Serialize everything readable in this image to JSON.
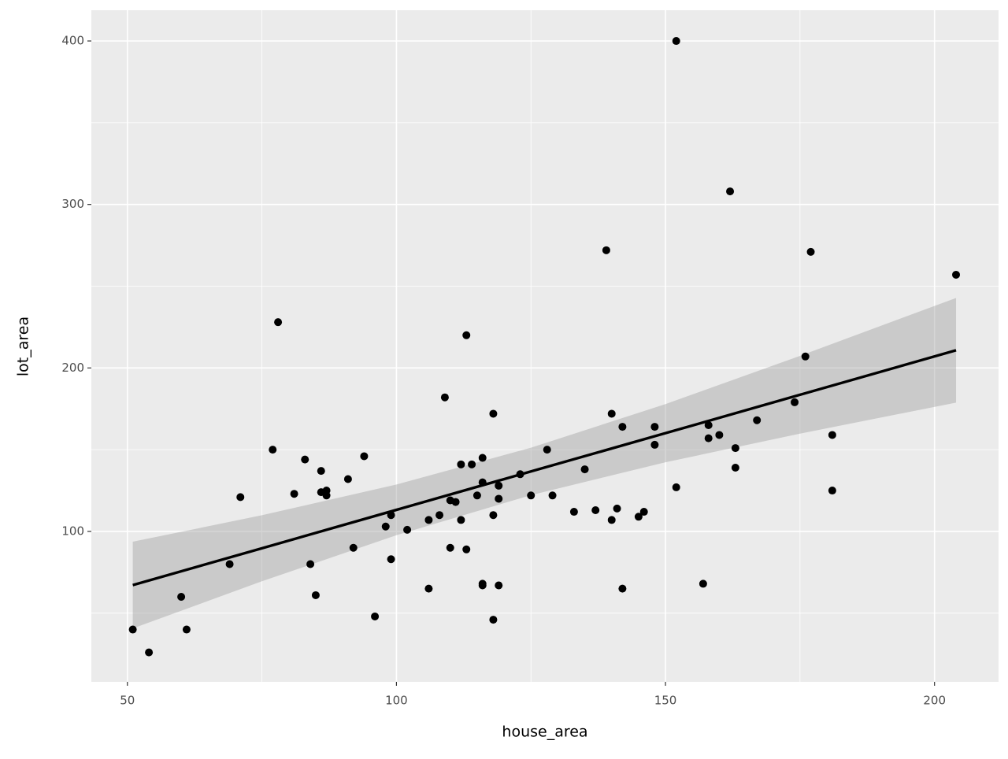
{
  "chart_data": {
    "type": "scatter",
    "x_label": "house_area",
    "y_label": "lot_area",
    "x": [
      51,
      54,
      60,
      61,
      69,
      71,
      77,
      78,
      81,
      83,
      84,
      85,
      86,
      86,
      87,
      87,
      91,
      92,
      94,
      96,
      98,
      99,
      99,
      102,
      106,
      106,
      108,
      109,
      110,
      110,
      111,
      112,
      112,
      113,
      113,
      114,
      115,
      116,
      116,
      116,
      116,
      118,
      118,
      118,
      119,
      119,
      119,
      123,
      125,
      128,
      129,
      133,
      135,
      137,
      139,
      140,
      140,
      141,
      142,
      142,
      145,
      146,
      148,
      148,
      152,
      152,
      157,
      158,
      158,
      160,
      162,
      163,
      163,
      167,
      174,
      176,
      177,
      181,
      181,
      204
    ],
    "y": [
      40,
      26,
      60,
      40,
      80,
      121,
      150,
      228,
      123,
      144,
      80,
      61,
      137,
      124,
      125,
      122,
      132,
      90,
      146,
      48,
      103,
      110,
      83,
      101,
      65,
      107,
      110,
      182,
      119,
      90,
      118,
      141,
      107,
      220,
      89,
      141,
      122,
      145,
      130,
      68,
      67,
      172,
      110,
      46,
      128,
      120,
      67,
      135,
      122,
      150,
      122,
      112,
      138,
      113,
      272,
      172,
      107,
      114,
      164,
      65,
      109,
      112,
      164,
      153,
      400,
      127,
      68,
      165,
      157,
      159,
      308,
      151,
      139,
      168,
      179,
      207,
      271,
      159,
      125,
      257
    ],
    "trend": {
      "x": [
        51,
        75,
        100,
        125,
        150,
        175,
        204
      ],
      "y": [
        67.2,
        89.7,
        113.2,
        136.7,
        160.1,
        183.6,
        210.8
      ],
      "lower": [
        40.7,
        69.5,
        97.7,
        122.2,
        142.3,
        159.8,
        178.8
      ],
      "upper": [
        93.7,
        109.9,
        128.7,
        151.2,
        177.9,
        207.4,
        242.8
      ]
    },
    "xlim": [
      43.3,
      211.9
    ],
    "ylim": [
      8,
      418.8
    ],
    "xticks": [
      50,
      100,
      150,
      200
    ],
    "yticks": [
      100,
      200,
      300,
      400
    ],
    "x_minor_grid": [
      75,
      125,
      175
    ],
    "y_minor_grid": [
      50,
      150,
      250,
      350
    ],
    "grid": true,
    "point_color": "#000000",
    "trend_color": "#000000",
    "band_color": "#999999"
  }
}
